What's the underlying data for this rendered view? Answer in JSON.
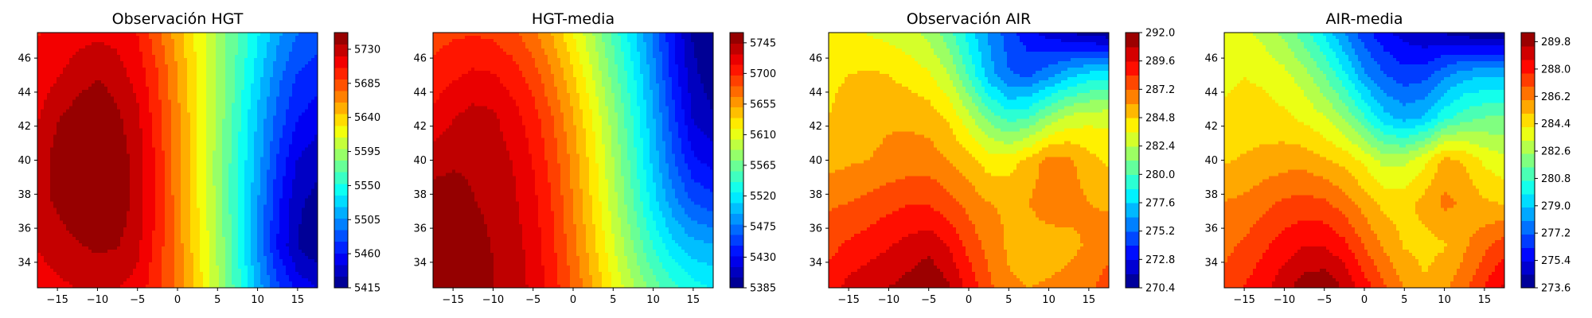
{
  "chart_data": [
    {
      "type": "heatmap",
      "subtype": "filled-contour",
      "title": "Observación HGT",
      "xlabel": "",
      "ylabel": "",
      "x_ticks": [
        -15,
        -10,
        -5,
        0,
        5,
        10,
        15
      ],
      "y_ticks": [
        34,
        36,
        38,
        40,
        42,
        44,
        46
      ],
      "xlim": [
        -17.5,
        17.5
      ],
      "ylim": [
        32.5,
        47.5
      ],
      "colormap": "jet",
      "color_range": [
        5415,
        5752
      ],
      "colorbar_ticks": [
        "5415",
        "5460",
        "5505",
        "5550",
        "5595",
        "5640",
        "5685",
        "5730"
      ],
      "colorbar_tick_values": [
        5415,
        5460,
        5505,
        5550,
        5595,
        5640,
        5685,
        5730
      ],
      "levels": 22,
      "x": [
        -17.5,
        -15,
        -12.5,
        -10,
        -7.5,
        -5,
        -2.5,
        0,
        2.5,
        5,
        7.5,
        10,
        12.5,
        15,
        17.5
      ],
      "y": [
        32.5,
        35,
        37.5,
        40,
        42.5,
        45,
        47.5
      ],
      "z": [
        [
          5715,
          5718,
          5722,
          5724,
          5722,
          5716,
          5695,
          5670,
          5638,
          5600,
          5560,
          5515,
          5480,
          5455,
          5445
        ],
        [
          5722,
          5728,
          5735,
          5740,
          5738,
          5725,
          5700,
          5668,
          5635,
          5597,
          5555,
          5505,
          5460,
          5430,
          5418
        ],
        [
          5728,
          5740,
          5750,
          5752,
          5748,
          5730,
          5703,
          5667,
          5630,
          5593,
          5552,
          5508,
          5465,
          5433,
          5425
        ],
        [
          5725,
          5745,
          5750,
          5752,
          5746,
          5730,
          5702,
          5666,
          5628,
          5592,
          5554,
          5515,
          5475,
          5445,
          5435
        ],
        [
          5720,
          5735,
          5745,
          5752,
          5740,
          5725,
          5697,
          5664,
          5630,
          5595,
          5558,
          5520,
          5486,
          5462,
          5452
        ],
        [
          5712,
          5720,
          5728,
          5735,
          5728,
          5715,
          5692,
          5660,
          5628,
          5598,
          5565,
          5530,
          5497,
          5475,
          5468
        ],
        [
          5705,
          5712,
          5716,
          5718,
          5716,
          5706,
          5680,
          5652,
          5624,
          5596,
          5568,
          5540,
          5512,
          5492,
          5485
        ]
      ]
    },
    {
      "type": "heatmap",
      "subtype": "filled-contour",
      "title": "HGT-media",
      "xlabel": "",
      "ylabel": "",
      "x_ticks": [
        -15,
        -10,
        -5,
        0,
        5,
        10,
        15
      ],
      "y_ticks": [
        34,
        36,
        38,
        40,
        42,
        44,
        46
      ],
      "xlim": [
        -17.5,
        17.5
      ],
      "ylim": [
        32.5,
        47.5
      ],
      "colormap": "jet",
      "color_range": [
        5385,
        5760
      ],
      "colorbar_ticks": [
        "5385",
        "5430",
        "5475",
        "5520",
        "5565",
        "5610",
        "5655",
        "5700",
        "5745"
      ],
      "colorbar_tick_values": [
        5385,
        5430,
        5475,
        5520,
        5565,
        5610,
        5655,
        5700,
        5745
      ],
      "levels": 24,
      "x": [
        -17.5,
        -15,
        -12.5,
        -10,
        -7.5,
        -5,
        -2.5,
        0,
        2.5,
        5,
        7.5,
        10,
        12.5,
        15,
        17.5
      ],
      "y": [
        32.5,
        35,
        37.5,
        40,
        42.5,
        45,
        47.5
      ],
      "z": [
        [
          5752,
          5750,
          5748,
          5745,
          5738,
          5725,
          5705,
          5680,
          5650,
          5618,
          5590,
          5565,
          5545,
          5532,
          5525
        ],
        [
          5755,
          5752,
          5748,
          5744,
          5736,
          5722,
          5700,
          5672,
          5640,
          5606,
          5572,
          5540,
          5515,
          5500,
          5495
        ],
        [
          5755,
          5752,
          5745,
          5742,
          5732,
          5718,
          5696,
          5666,
          5632,
          5596,
          5558,
          5518,
          5485,
          5462,
          5455
        ],
        [
          5736,
          5742,
          5742,
          5736,
          5728,
          5712,
          5690,
          5660,
          5626,
          5588,
          5548,
          5505,
          5465,
          5435,
          5425
        ],
        [
          5718,
          5728,
          5735,
          5732,
          5720,
          5705,
          5682,
          5652,
          5618,
          5580,
          5540,
          5497,
          5453,
          5415,
          5402
        ],
        [
          5703,
          5710,
          5716,
          5714,
          5705,
          5690,
          5666,
          5637,
          5603,
          5566,
          5528,
          5486,
          5440,
          5405,
          5390
        ],
        [
          5690,
          5695,
          5696,
          5694,
          5686,
          5670,
          5648,
          5620,
          5588,
          5552,
          5515,
          5475,
          5432,
          5398,
          5388
        ]
      ]
    },
    {
      "type": "heatmap",
      "subtype": "filled-contour",
      "title": "Observación AIR",
      "xlabel": "",
      "ylabel": "",
      "x_ticks": [
        -15,
        -10,
        -5,
        0,
        5,
        10,
        15
      ],
      "y_ticks": [
        34,
        36,
        38,
        40,
        42,
        44,
        46
      ],
      "xlim": [
        -17.5,
        17.5
      ],
      "ylim": [
        32.5,
        47.5
      ],
      "colormap": "jet",
      "color_range": [
        270.4,
        292.0
      ],
      "colorbar_ticks": [
        "270.4",
        "272.8",
        "275.2",
        "277.6",
        "280.0",
        "282.4",
        "284.8",
        "287.2",
        "289.6",
        "292.0"
      ],
      "colorbar_tick_values": [
        270.4,
        272.8,
        275.2,
        277.6,
        280.0,
        282.4,
        284.8,
        287.2,
        289.6,
        292.0
      ],
      "levels": 18,
      "x": [
        -17.5,
        -15,
        -12.5,
        -10,
        -7.5,
        -5,
        -2.5,
        0,
        2.5,
        5,
        7.5,
        10,
        12.5,
        15,
        17.5
      ],
      "y": [
        32.5,
        35,
        37.5,
        40,
        42.5,
        45,
        47.5
      ],
      "z": [
        [
          289.0,
          290.0,
          290.5,
          290.8,
          291.3,
          292.0,
          291.0,
          289.2,
          287.5,
          286.2,
          286.0,
          286.2,
          286.5,
          287.0,
          287.8
        ],
        [
          288.0,
          288.6,
          289.0,
          289.5,
          290.0,
          290.4,
          289.5,
          288.0,
          286.8,
          285.8,
          285.3,
          285.3,
          285.6,
          286.2,
          286.8
        ],
        [
          287.0,
          287.2,
          287.6,
          288.0,
          288.3,
          288.3,
          287.6,
          286.8,
          286.0,
          285.8,
          286.0,
          286.8,
          286.5,
          286.0,
          285.8
        ],
        [
          285.5,
          285.8,
          286.0,
          286.3,
          286.5,
          286.6,
          286.0,
          285.2,
          284.2,
          284.2,
          285.2,
          286.5,
          286.3,
          285.2,
          284.6
        ],
        [
          284.8,
          285.2,
          285.6,
          285.8,
          285.8,
          285.5,
          284.6,
          282.8,
          280.8,
          279.5,
          280.0,
          281.6,
          282.8,
          283.2,
          283.2
        ],
        [
          284.6,
          284.8,
          285.0,
          284.8,
          284.3,
          283.8,
          282.4,
          279.8,
          277.0,
          275.3,
          275.0,
          276.0,
          277.2,
          278.0,
          278.4
        ],
        [
          284.0,
          283.8,
          283.5,
          283.2,
          282.8,
          282.0,
          280.5,
          278.2,
          276.2,
          274.6,
          273.2,
          272.3,
          271.6,
          271.0,
          270.7
        ]
      ]
    },
    {
      "type": "heatmap",
      "subtype": "filled-contour",
      "title": "AIR-media",
      "xlabel": "",
      "ylabel": "",
      "x_ticks": [
        -15,
        -10,
        -5,
        0,
        5,
        10,
        15
      ],
      "y_ticks": [
        34,
        36,
        38,
        40,
        42,
        44,
        46
      ],
      "xlim": [
        -17.5,
        17.5
      ],
      "ylim": [
        32.5,
        47.5
      ],
      "colormap": "jet",
      "color_range": [
        273.6,
        290.4
      ],
      "colorbar_ticks": [
        "273.6",
        "275.4",
        "277.2",
        "279.0",
        "280.8",
        "282.6",
        "284.4",
        "286.2",
        "288.0",
        "289.8"
      ],
      "colorbar_tick_values": [
        273.6,
        275.4,
        277.2,
        279.0,
        280.8,
        282.6,
        284.4,
        286.2,
        288.0,
        289.8
      ],
      "levels": 19,
      "x": [
        -17.5,
        -15,
        -12.5,
        -10,
        -7.5,
        -5,
        -2.5,
        0,
        2.5,
        5,
        7.5,
        10,
        12.5,
        15,
        17.5
      ],
      "y": [
        32.5,
        35,
        37.5,
        40,
        42.5,
        45,
        47.5
      ],
      "z": [
        [
          287.2,
          287.8,
          288.4,
          289.2,
          290.0,
          290.2,
          289.4,
          288.2,
          287.0,
          286.0,
          285.2,
          285.8,
          286.6,
          287.8,
          288.8
        ],
        [
          286.6,
          287.0,
          287.6,
          288.2,
          288.6,
          288.6,
          288.0,
          286.8,
          285.8,
          285.0,
          284.8,
          285.0,
          285.8,
          286.6,
          287.4
        ],
        [
          286.0,
          286.2,
          286.6,
          287.0,
          287.2,
          287.0,
          286.4,
          285.6,
          284.8,
          284.8,
          285.4,
          286.2,
          285.8,
          285.2,
          285.0
        ],
        [
          285.0,
          285.2,
          285.4,
          285.6,
          285.6,
          285.2,
          284.8,
          284.0,
          283.0,
          283.0,
          284.0,
          285.4,
          285.0,
          284.0,
          283.6
        ],
        [
          284.4,
          284.6,
          284.6,
          284.4,
          284.0,
          283.4,
          282.4,
          280.8,
          279.2,
          278.6,
          279.0,
          280.4,
          281.2,
          281.6,
          281.6
        ],
        [
          284.0,
          284.2,
          284.0,
          283.6,
          282.8,
          281.6,
          280.0,
          278.2,
          277.2,
          276.6,
          276.8,
          277.8,
          278.6,
          278.8,
          278.8
        ],
        [
          283.8,
          283.6,
          283.0,
          282.2,
          281.0,
          279.6,
          278.0,
          276.6,
          275.6,
          275.0,
          274.6,
          274.4,
          274.0,
          273.8,
          273.8
        ]
      ]
    }
  ]
}
